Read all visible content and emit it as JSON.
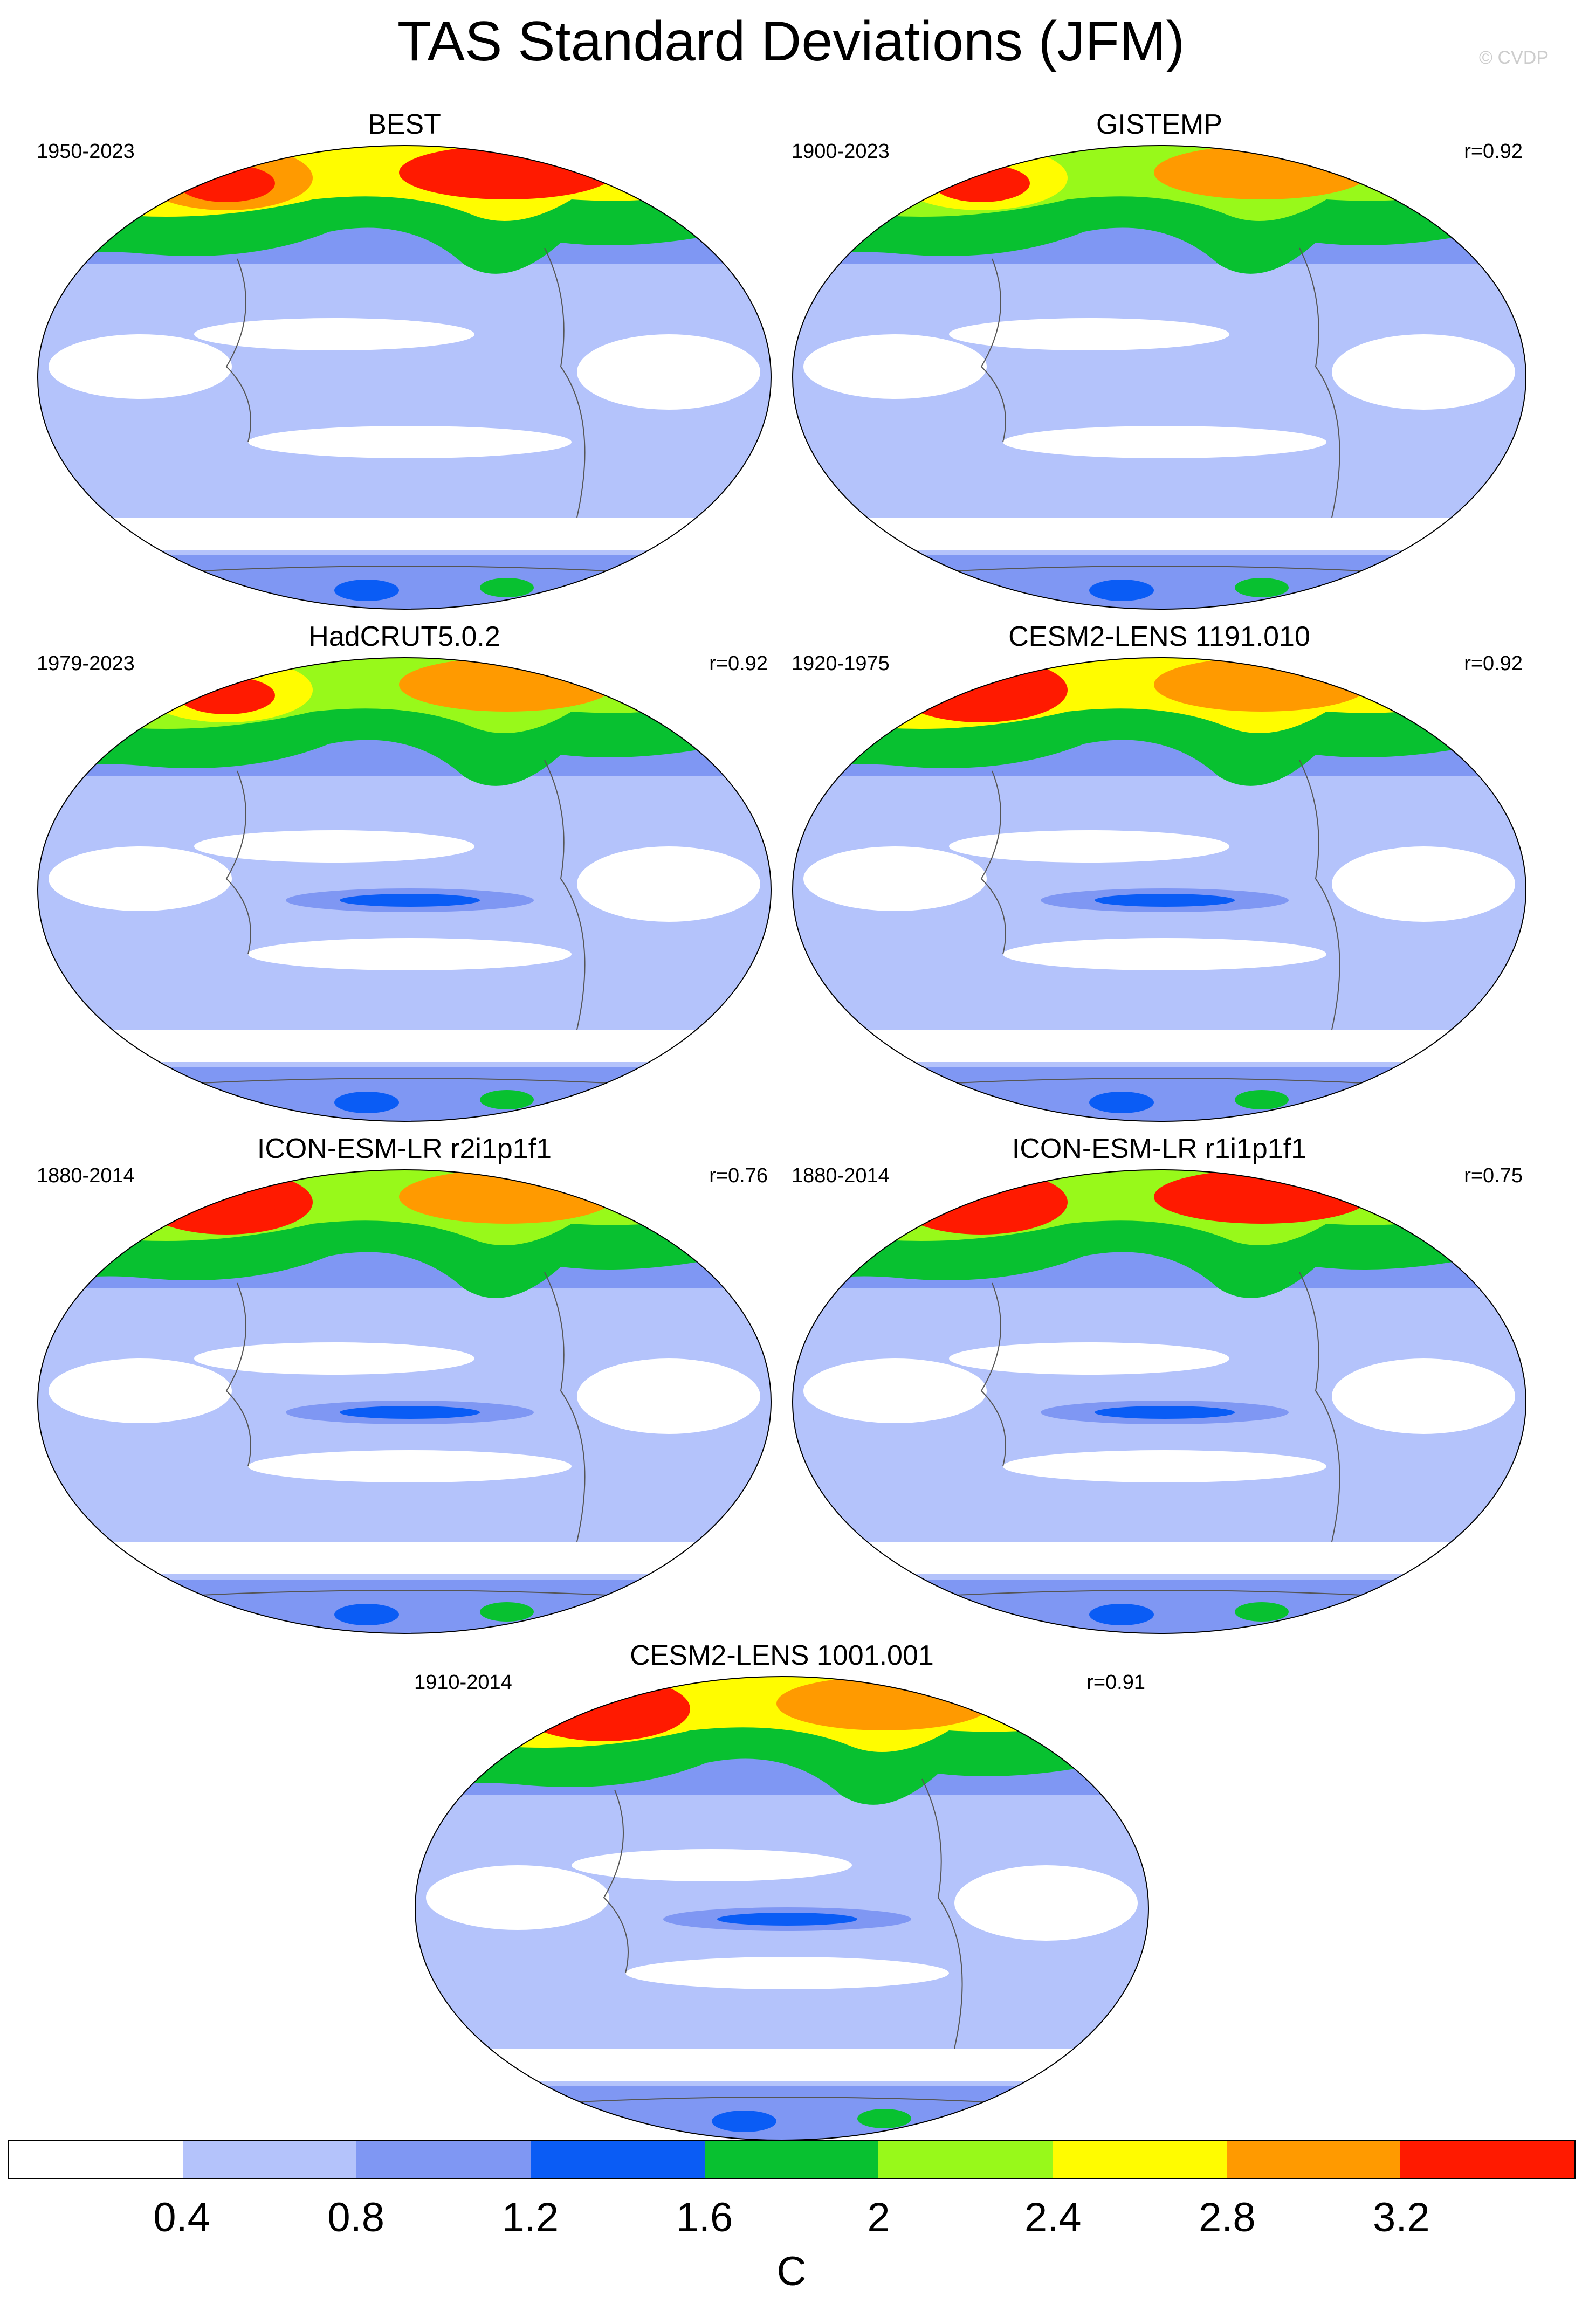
{
  "figure": {
    "title": "TAS Standard Deviations (JFM)",
    "credit": "© CVDP"
  },
  "panels": [
    {
      "name": "BEST",
      "period": "1950-2023",
      "corr": ""
    },
    {
      "name": "GISTEMP",
      "period": "1900-2023",
      "corr": "r=0.92"
    },
    {
      "name": "HadCRUT5.0.2",
      "period": "1979-2023",
      "corr": "r=0.92"
    },
    {
      "name": "CESM2-LENS 1191.010",
      "period": "1920-1975",
      "corr": "r=0.92"
    },
    {
      "name": "ICON-ESM-LR r2i1p1f1",
      "period": "1880-2014",
      "corr": "r=0.76"
    },
    {
      "name": "ICON-ESM-LR r1i1p1f1",
      "period": "1880-2014",
      "corr": "r=0.75"
    },
    {
      "name": "CESM2-LENS 1001.001",
      "period": "1910-2014",
      "corr": "r=0.91"
    }
  ],
  "colorbar": {
    "unit": "C",
    "levels": [
      "0.4",
      "0.8",
      "1.2",
      "1.6",
      "2",
      "2.4",
      "2.8",
      "3.2"
    ],
    "colors": [
      "#ffffff",
      "#b4c3fb",
      "#7f97f3",
      "#0a5cf5",
      "#08c130",
      "#98f91a",
      "#fffc00",
      "#ff9a00",
      "#ff1a00"
    ]
  },
  "map_style": {
    "ocean_base": "#b4c3fb",
    "coastline": "#555555"
  }
}
